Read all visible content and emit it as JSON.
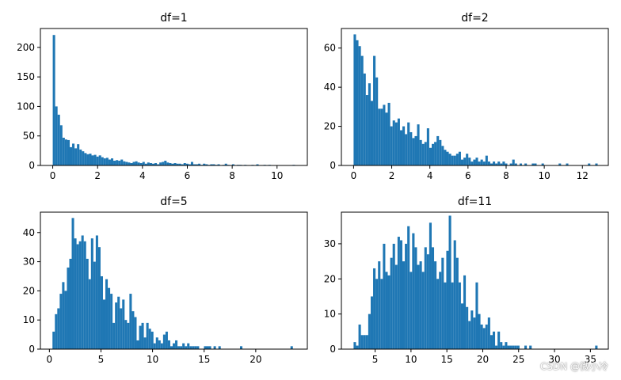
{
  "figure": {
    "watermark": "CSDN @微小冷",
    "bar_color": "#1f77b4"
  },
  "chart_data": [
    {
      "type": "bar",
      "title": "df=1",
      "xlabel": "",
      "ylabel": "",
      "bins": 100,
      "xlim": [
        -0.55,
        11.35
      ],
      "ylim": [
        0,
        232
      ],
      "xticks": [
        0,
        2,
        4,
        6,
        8,
        10
      ],
      "yticks": [
        0,
        50,
        100,
        150,
        200
      ],
      "bin_start": 0.0,
      "bin_width": 0.108,
      "values": [
        221,
        100,
        86,
        68,
        47,
        44,
        43,
        31,
        37,
        29,
        36,
        27,
        24,
        21,
        19,
        20,
        17,
        18,
        15,
        17,
        14,
        12,
        13,
        10,
        12,
        8,
        9,
        8,
        10,
        7,
        6,
        5,
        4,
        6,
        7,
        5,
        4,
        6,
        3,
        5,
        4,
        3,
        4,
        2,
        5,
        6,
        8,
        5,
        4,
        3,
        4,
        3,
        3,
        2,
        4,
        3,
        2,
        6,
        2,
        2,
        3,
        1,
        3,
        2,
        1,
        2,
        2,
        1,
        2,
        0,
        1,
        3,
        1,
        0,
        2,
        0,
        1,
        1,
        0,
        1,
        0,
        0,
        1,
        0,
        2,
        0,
        0,
        1,
        0,
        1,
        0,
        0,
        0,
        0,
        0,
        0,
        0,
        0,
        0,
        1
      ]
    },
    {
      "type": "bar",
      "title": "df=2",
      "xlabel": "",
      "ylabel": "",
      "bins": 100,
      "xlim": [
        -0.64,
        13.36
      ],
      "ylim": [
        0,
        70
      ],
      "xticks": [
        0,
        2,
        4,
        6,
        8,
        10,
        12
      ],
      "yticks": [
        0,
        20,
        40,
        60
      ],
      "bin_start": 0.0,
      "bin_width": 0.128,
      "values": [
        67,
        64,
        61,
        56,
        47,
        36,
        42,
        33,
        56,
        45,
        29,
        29,
        31,
        27,
        32,
        20,
        23,
        22,
        24,
        18,
        20,
        16,
        22,
        17,
        14,
        15,
        21,
        13,
        11,
        12,
        19,
        9,
        11,
        12,
        15,
        13,
        10,
        8,
        7,
        6,
        5,
        5,
        6,
        7,
        3,
        4,
        6,
        4,
        2,
        3,
        4,
        2,
        3,
        2,
        5,
        2,
        1,
        2,
        1,
        2,
        1,
        2,
        1,
        0,
        1,
        3,
        1,
        0,
        1,
        0,
        1,
        0,
        0,
        1,
        1,
        0,
        0,
        1,
        0,
        0,
        0,
        0,
        0,
        0,
        1,
        0,
        0,
        1,
        0,
        0,
        0,
        0,
        0,
        0,
        0,
        0,
        1,
        0,
        0,
        1
      ]
    },
    {
      "type": "bar",
      "title": "df=5",
      "xlabel": "",
      "ylabel": "",
      "bins": 100,
      "xlim": [
        -0.87,
        25.0
      ],
      "ylim": [
        0,
        47
      ],
      "xticks": [
        0,
        5,
        10,
        15,
        20
      ],
      "yticks": [
        0,
        10,
        20,
        30,
        40
      ],
      "bin_start": 0.3,
      "bin_width": 0.233,
      "values": [
        6,
        12,
        14,
        19,
        23,
        20,
        28,
        31,
        45,
        38,
        36,
        37,
        39,
        37,
        31,
        24,
        38,
        30,
        39,
        35,
        25,
        17,
        24,
        21,
        19,
        9,
        16,
        18,
        14,
        17,
        10,
        9,
        19,
        13,
        11,
        3,
        8,
        9,
        4,
        9,
        7,
        6,
        2,
        4,
        3,
        2,
        5,
        6,
        3,
        1,
        2,
        3,
        1,
        1,
        2,
        1,
        2,
        1,
        1,
        1,
        1,
        0,
        0,
        1,
        1,
        1,
        0,
        1,
        0,
        1,
        0,
        0,
        0,
        0,
        0,
        0,
        0,
        0,
        1,
        0,
        0,
        0,
        0,
        0,
        0,
        0,
        0,
        0,
        0,
        0,
        0,
        0,
        0,
        0,
        0,
        0,
        0,
        0,
        0,
        1
      ]
    },
    {
      "type": "bar",
      "title": "df=11",
      "xlabel": "",
      "ylabel": "",
      "bins": 100,
      "xlim": [
        0.3,
        37.5
      ],
      "ylim": [
        0,
        39
      ],
      "xticks": [
        5,
        10,
        15,
        20,
        25,
        30,
        35
      ],
      "yticks": [
        0,
        10,
        20,
        30
      ],
      "bin_start": 2.0,
      "bin_width": 0.34,
      "values": [
        2,
        1,
        7,
        4,
        4,
        4,
        10,
        15,
        23,
        20,
        25,
        20,
        30,
        22,
        21,
        26,
        30,
        24,
        32,
        31,
        25,
        30,
        35,
        22,
        33,
        29,
        24,
        25,
        22,
        29,
        27,
        36,
        29,
        25,
        20,
        22,
        26,
        19,
        28,
        38,
        19,
        31,
        26,
        19,
        13,
        21,
        12,
        8,
        11,
        9,
        19,
        10,
        7,
        6,
        7,
        9,
        4,
        5,
        1,
        5,
        2,
        1,
        2,
        1,
        1,
        1,
        1,
        1,
        0,
        0,
        1,
        0,
        1,
        0,
        0,
        0,
        0,
        0,
        0,
        0,
        0,
        0,
        0,
        0,
        0,
        0,
        0,
        0,
        0,
        0,
        0,
        0,
        0,
        0,
        0,
        0,
        0,
        0,
        0,
        1
      ]
    }
  ]
}
